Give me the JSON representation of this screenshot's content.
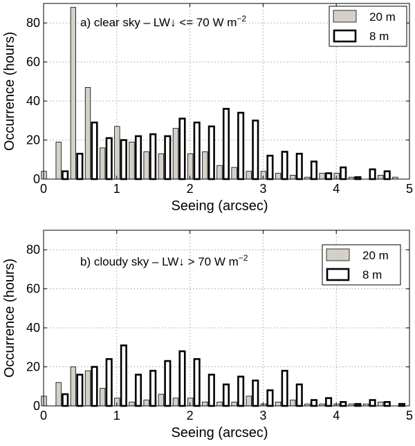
{
  "colors": {
    "bar_20m": "#d4d0c8",
    "bar_8m": "#ffffff",
    "edge": "#000000",
    "grid": "#a0a0a0"
  },
  "chart_data": [
    {
      "type": "bar",
      "panel": "a",
      "annotation_prefix": "a) clear sky – LW↓ <= 70 W m",
      "annotation_exp": "−2",
      "xlabel": "Seeing (arcsec)",
      "ylabel": "Occurrence (hours)",
      "xlim": [
        0,
        5
      ],
      "ylim": [
        0,
        90
      ],
      "xticks": [
        0,
        1,
        2,
        3,
        4,
        5
      ],
      "yticks": [
        0,
        20,
        40,
        60,
        80
      ],
      "grid": true,
      "legend_position": "top-right",
      "bin_centers": [
        0.05,
        0.25,
        0.45,
        0.65,
        0.85,
        1.05,
        1.25,
        1.45,
        1.65,
        1.85,
        2.05,
        2.25,
        2.45,
        2.65,
        2.85,
        3.05,
        3.25,
        3.45,
        3.65,
        3.85,
        4.05,
        4.25,
        4.45,
        4.65,
        4.85
      ],
      "series": [
        {
          "name": "20 m",
          "values": [
            4,
            19,
            88,
            47,
            16,
            27,
            19,
            14,
            13,
            26,
            13,
            14,
            7,
            6,
            4,
            4,
            3,
            2,
            1,
            3,
            3,
            1,
            0,
            2,
            1
          ]
        },
        {
          "name": "8 m",
          "values": [
            0,
            4,
            13,
            29,
            21,
            20,
            22,
            23,
            22,
            31,
            29,
            27,
            36,
            34,
            30,
            12,
            14,
            13,
            9,
            3,
            6,
            1,
            5,
            4,
            0
          ]
        }
      ]
    },
    {
      "type": "bar",
      "panel": "b",
      "annotation_prefix": "b) cloudy sky – LW↓ > 70 W m",
      "annotation_exp": "−2",
      "xlabel": "Seeing (arcsec)",
      "ylabel": "Occurrence (hours)",
      "xlim": [
        0,
        5
      ],
      "ylim": [
        0,
        90
      ],
      "xticks": [
        0,
        1,
        2,
        3,
        4,
        5
      ],
      "yticks": [
        0,
        20,
        40,
        60,
        80
      ],
      "grid": true,
      "legend_position": "top-right",
      "bin_centers": [
        0.05,
        0.25,
        0.45,
        0.65,
        0.85,
        1.05,
        1.25,
        1.45,
        1.65,
        1.85,
        2.05,
        2.25,
        2.45,
        2.65,
        2.85,
        3.05,
        3.25,
        3.45,
        3.65,
        3.85,
        4.05,
        4.25,
        4.45,
        4.65,
        4.85
      ],
      "series": [
        {
          "name": "20 m",
          "values": [
            5,
            12,
            20,
            18,
            9,
            4,
            2,
            3,
            6,
            4,
            4,
            2,
            2,
            2,
            5,
            1,
            2,
            3,
            1,
            1,
            1,
            1,
            1,
            2,
            0
          ]
        },
        {
          "name": "8 m",
          "values": [
            0,
            6,
            16,
            20,
            24,
            31,
            16,
            18,
            23,
            28,
            24,
            16,
            11,
            15,
            13,
            8,
            18,
            11,
            3,
            4,
            2,
            1,
            3,
            2,
            1
          ]
        }
      ]
    }
  ]
}
